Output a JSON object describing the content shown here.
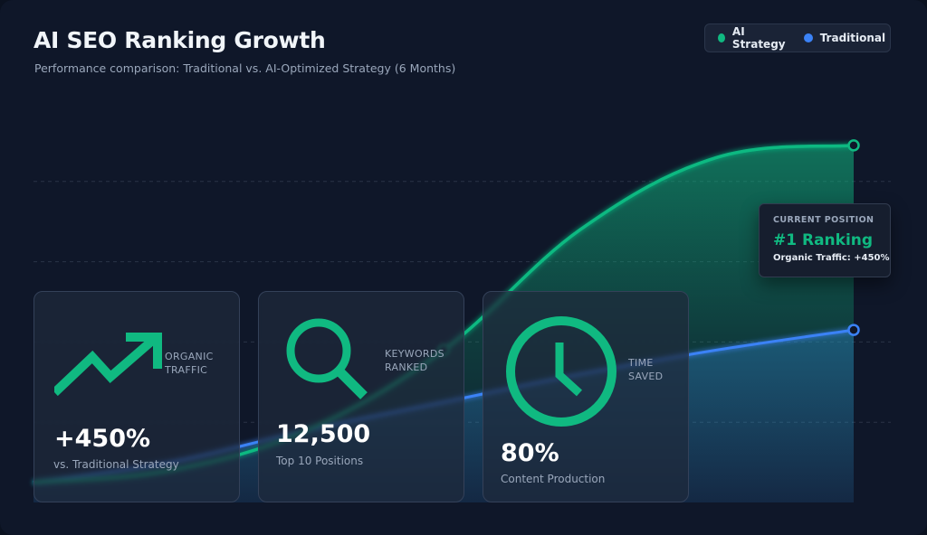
{
  "header": {
    "title": "AI SEO Ranking Growth",
    "subtitle": "Performance comparison: Traditional vs. AI-Optimized Strategy (6 Months)"
  },
  "legend": {
    "items": [
      {
        "label": "AI Strategy",
        "color": "#10b981"
      },
      {
        "label": "Traditional",
        "color": "#3b82f6"
      }
    ]
  },
  "tooltip": {
    "label": "CURRENT POSITION",
    "rank": "#1 Ranking",
    "traffic": "Organic Traffic: +450%"
  },
  "metrics": [
    {
      "icon": "trending-up-icon",
      "label_line1": "ORGANIC",
      "label_line2": "TRAFFIC",
      "value": "+450%",
      "sub": "vs. Traditional Strategy"
    },
    {
      "icon": "search-icon",
      "label_line1": "KEYWORDS",
      "label_line2": "RANKED",
      "value": "12,500",
      "sub": "Top 10 Positions"
    },
    {
      "icon": "clock-icon",
      "label_line1": "TIME",
      "label_line2": "SAVED",
      "value": "80%",
      "sub": "Content Production"
    }
  ],
  "colors": {
    "background": "#0f1729",
    "ai": "#10b981",
    "traditional": "#3b82f6",
    "grid": "#2a3447"
  },
  "chart_data": {
    "type": "area",
    "title": "AI SEO Ranking Growth",
    "subtitle": "Performance comparison: Traditional vs. AI-Optimized Strategy (6 Months)",
    "x": [
      0,
      1,
      2,
      3,
      4,
      5,
      6
    ],
    "ylim": [
      0,
      100
    ],
    "grid": true,
    "legend_position": "top-right",
    "series": [
      {
        "name": "AI Strategy",
        "color": "#10b981",
        "values": [
          5,
          8,
          18,
          38,
          68,
          86,
          89
        ]
      },
      {
        "name": "Traditional",
        "color": "#3b82f6",
        "values": [
          5,
          10,
          18,
          25,
          32,
          38,
          43
        ]
      }
    ],
    "marked_points": [
      {
        "series": "AI Strategy",
        "index": 3
      },
      {
        "series": "AI Strategy",
        "index": 6
      },
      {
        "series": "Traditional",
        "index": 6
      }
    ]
  }
}
